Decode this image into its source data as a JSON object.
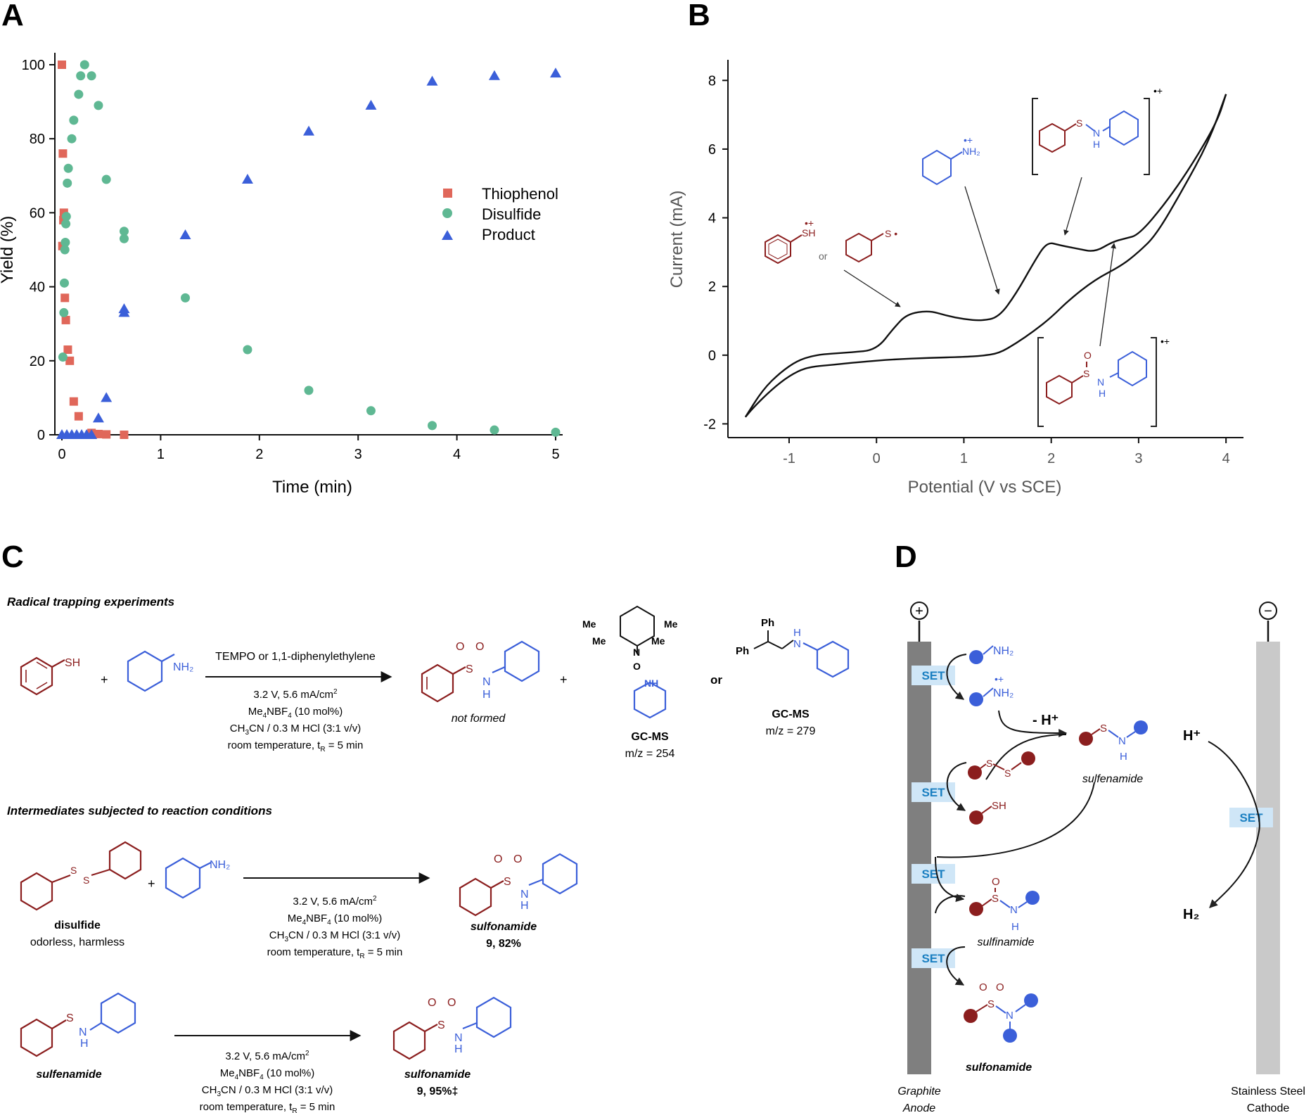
{
  "panels": {
    "a": "A",
    "b": "B",
    "c": "C",
    "d": "D"
  },
  "chartA": {
    "xlabel": "Time (min)",
    "ylabel": "Yield (%)",
    "xticks": [
      "0",
      "1",
      "2",
      "3",
      "4",
      "5"
    ],
    "yticks": [
      "0",
      "20",
      "40",
      "60",
      "80",
      "100"
    ],
    "legend": [
      "Thiophenol",
      "Disulfide",
      "Product"
    ],
    "colors": {
      "thiophenol": "#e0675a",
      "disulfide": "#5fb893",
      "product": "#3b5fd9"
    }
  },
  "chartB": {
    "xlabel": "Potential (V vs SCE)",
    "ylabel": "Current (mA)",
    "xticks": [
      "-1",
      "0",
      "1",
      "2",
      "3",
      "4"
    ],
    "yticks": [
      "-2",
      "0",
      "2",
      "4",
      "6",
      "8"
    ],
    "or_label": "or"
  },
  "chart_data": [
    {
      "type": "scatter",
      "xlabel": "Time (min)",
      "ylabel": "Yield (%)",
      "xlim": [
        0,
        5
      ],
      "ylim": [
        0,
        100
      ],
      "legend_position": "right-center",
      "series": [
        {
          "name": "Thiophenol",
          "marker": "square",
          "x": [
            0,
            0.01,
            0.02,
            0.015,
            0.005,
            0.03,
            0.04,
            0.06,
            0.08,
            0.12,
            0.17,
            0.3,
            0.37,
            0.45,
            0.63
          ],
          "y": [
            100,
            76,
            60,
            58,
            51,
            37,
            31,
            23,
            20,
            9,
            5,
            0.5,
            0.2,
            0.1,
            0
          ]
        },
        {
          "name": "Disulfide",
          "marker": "circle",
          "x": [
            0.01,
            0.02,
            0.025,
            0.03,
            0.035,
            0.04,
            0.045,
            0.055,
            0.065,
            0.1,
            0.12,
            0.17,
            0.19,
            0.23,
            0.3,
            0.37,
            0.45,
            0.63,
            0.63,
            1.25,
            1.88,
            2.5,
            3.13,
            3.75,
            4.38,
            5
          ],
          "y": [
            21,
            33,
            41,
            50,
            52,
            57,
            59,
            68,
            72,
            80,
            85,
            92,
            97,
            100,
            97,
            89,
            69,
            55,
            53,
            37,
            23,
            12,
            6.5,
            2.5,
            1.3,
            0.7
          ],
          "color": "#5fb893"
        },
        {
          "name": "Product",
          "marker": "triangle",
          "x": [
            0,
            0.05,
            0.1,
            0.15,
            0.2,
            0.25,
            0.3,
            0.37,
            0.45,
            0.63,
            0.63,
            1.25,
            1.88,
            2.5,
            3.13,
            3.75,
            4.38,
            5
          ],
          "y": [
            0,
            0,
            0,
            0,
            0,
            0,
            0,
            4.5,
            10,
            33,
            34,
            54,
            69,
            82,
            89,
            95.5,
            97,
            97.7
          ],
          "color": "#3b5fd9"
        }
      ]
    },
    {
      "type": "line",
      "xlabel": "Potential (V vs SCE)",
      "ylabel": "Current (mA)",
      "xlim": [
        -1.7,
        4.2
      ],
      "ylim": [
        -2.4,
        8.6
      ],
      "series": [
        {
          "name": "forward",
          "x": [
            -1.5,
            -1.3,
            -1.1,
            -0.9,
            -0.7,
            -0.5,
            -0.3,
            0,
            0.2,
            0.35,
            0.6,
            0.8,
            1.0,
            1.2,
            1.4,
            1.6,
            1.8,
            1.95,
            2.1,
            2.3,
            2.5,
            2.7,
            2.85,
            3.0,
            3.3,
            3.6,
            3.9,
            4.0
          ],
          "y": [
            -1.8,
            -1.0,
            -0.5,
            -0.15,
            0,
            0.05,
            0.08,
            0.15,
            0.8,
            1.2,
            1.3,
            1.15,
            1.05,
            1.0,
            1.1,
            1.8,
            2.7,
            3.3,
            3.2,
            3.1,
            3.0,
            3.3,
            3.4,
            3.5,
            4.4,
            5.5,
            6.8,
            7.6
          ]
        },
        {
          "name": "reverse",
          "x": [
            4.0,
            3.8,
            3.5,
            3.2,
            3.0,
            2.8,
            2.5,
            2.2,
            2.0,
            1.8,
            1.6,
            1.4,
            1.2,
            1.0,
            0.6,
            0.2,
            -0.2,
            -0.5,
            -0.8,
            -1.0,
            -1.2,
            -1.4,
            -1.5
          ],
          "y": [
            7.6,
            6.2,
            4.8,
            3.5,
            3.0,
            2.6,
            2.2,
            1.6,
            1.1,
            0.7,
            0.35,
            0.05,
            -0.02,
            -0.05,
            -0.08,
            -0.12,
            -0.2,
            -0.28,
            -0.35,
            -0.6,
            -1.0,
            -1.5,
            -1.8
          ]
        }
      ]
    }
  ],
  "panelC": {
    "heading1": "Radical trapping experiments",
    "heading2": "Intermediates subjected to reaction conditions",
    "sh": "SH",
    "nh2": "NH2",
    "plus": "+",
    "reagent_top": "TEMPO or 1,1-diphenylethylene",
    "cond1": "3.2 V, 5.6 mA/cm2",
    "cond2": "Me4NBF4 (10 mol%)",
    "cond3": "CH3CN / 0.3 M HCl  (3:1 v/v)",
    "cond4": "room temperature, tR = 5 min",
    "not_formed": "not formed",
    "or": "or",
    "gcms": "GC-MS",
    "mz254": "m/z = 254",
    "mz279": "m/z = 279",
    "me": "Me",
    "n": "N",
    "o": "O",
    "nh": "NH",
    "h": "H",
    "s": "S",
    "ph": "Ph",
    "disulfide": "disulfide",
    "odorless": "odorless, harmless",
    "sulfonamide": "sulfonamide",
    "yield82": "9, 82%",
    "sulfenamide": "sulfenamide",
    "yield95": "9, 95%‡"
  },
  "panelD": {
    "set": "SET",
    "h_minus": "- H+",
    "hplus": "H+",
    "h2": "H2",
    "sulfenamide": "sulfenamide",
    "sulfinamide": "sulfinamide",
    "sulfonamide": "sulfonamide",
    "anode1": "Graphite",
    "anode2": "Anode",
    "cathode1": "Stainless Steel",
    "cathode2": "Cathode",
    "plus": "+",
    "minus": "−"
  }
}
